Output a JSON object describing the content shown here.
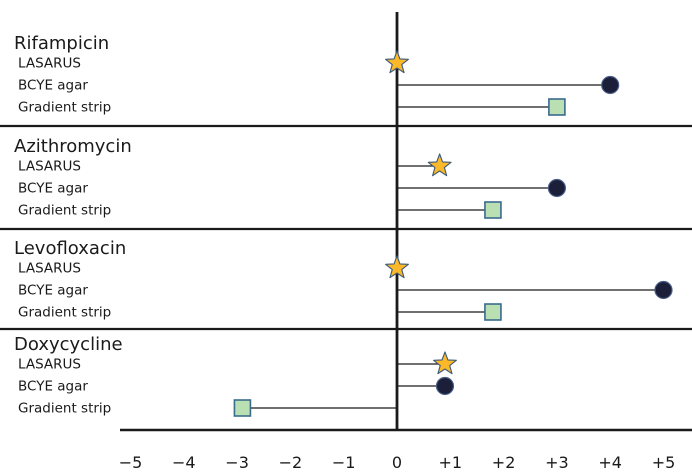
{
  "chart_data": {
    "type": "scatter",
    "x_ticks": [
      "−5",
      "−4",
      "−3",
      "−2",
      "−1",
      "0",
      "+1",
      "+2",
      "+3",
      "+4",
      "+5"
    ],
    "xlim": [
      -5,
      5
    ],
    "drugs": [
      {
        "name": "Rifampicin",
        "methods": [
          {
            "label": "LASARUS",
            "value": 0
          },
          {
            "label": "BCYE agar",
            "value": 4
          },
          {
            "label": "Gradient strip",
            "value": 3
          }
        ]
      },
      {
        "name": "Azithromycin",
        "methods": [
          {
            "label": "LASARUS",
            "value": 0.8
          },
          {
            "label": "BCYE agar",
            "value": 3
          },
          {
            "label": "Gradient strip",
            "value": 1.8
          }
        ]
      },
      {
        "name": "Levofloxacin",
        "methods": [
          {
            "label": "LASARUS",
            "value": 0
          },
          {
            "label": "BCYE agar",
            "value": 5
          },
          {
            "label": "Gradient strip",
            "value": 1.8
          }
        ]
      },
      {
        "name": "Doxycycline",
        "methods": [
          {
            "label": "LASARUS",
            "value": 0.9
          },
          {
            "label": "BCYE agar",
            "value": 0.9
          },
          {
            "label": "Gradient strip",
            "value": -2.9
          }
        ]
      }
    ],
    "markers": {
      "LASARUS": "star",
      "BCYE agar": "circle",
      "Gradient strip": "square"
    },
    "colors": {
      "star_fill": "#fbb829",
      "star_stroke": "#3d5a7a",
      "circle_fill": "#1b1f3a",
      "square_fill": "#b9dfb2",
      "square_stroke": "#3a6a8e",
      "line": "#1a1a1a"
    }
  }
}
